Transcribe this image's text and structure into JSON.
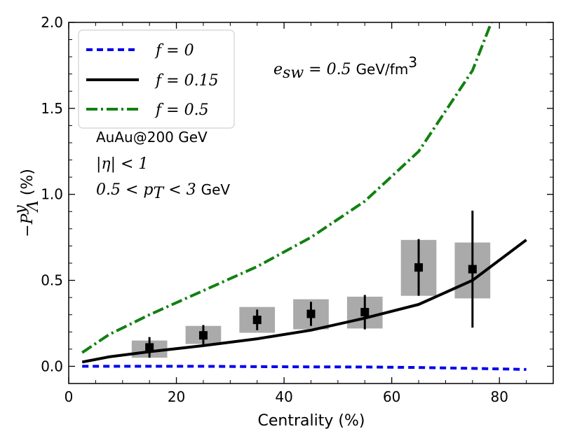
{
  "chart_data": {
    "type": "line",
    "xlabel": "Centrality (%)",
    "ylabel": "−P",
    "ylabel_sup": "y",
    "ylabel_sub": "Λ",
    "ylabel_unit": " (%)",
    "xlim": [
      0,
      90
    ],
    "ylim": [
      -0.1,
      2.0
    ],
    "xticks": [
      0,
      20,
      40,
      60,
      80
    ],
    "yticks": [
      0.0,
      0.5,
      1.0,
      1.5,
      2.0
    ],
    "xtick_labels": [
      "0",
      "20",
      "40",
      "60",
      "80"
    ],
    "ytick_labels": [
      "0.0",
      "0.5",
      "1.0",
      "1.5",
      "2.0"
    ],
    "grid": false,
    "legend_position": "top-left",
    "series": [
      {
        "name_var": "f",
        "name_value": " = 0",
        "style": "dashed",
        "color": "#0000ee",
        "x": [
          2.5,
          7.5,
          15,
          25,
          35,
          45,
          55,
          65,
          75,
          85
        ],
        "y": [
          0.0,
          0.0,
          0.0,
          0.0,
          -0.002,
          -0.003,
          -0.004,
          -0.007,
          -0.012,
          -0.018
        ]
      },
      {
        "name_var": "f",
        "name_value": " = 0.15",
        "style": "solid",
        "color": "#000000",
        "x": [
          2.5,
          7.5,
          15,
          25,
          35,
          45,
          55,
          65,
          75,
          85
        ],
        "y": [
          0.025,
          0.055,
          0.085,
          0.12,
          0.16,
          0.21,
          0.28,
          0.36,
          0.5,
          0.735
        ]
      },
      {
        "name_var": "f",
        "name_value": " = 0.5",
        "style": "dashdot",
        "color": "#118011",
        "x": [
          2.5,
          7.5,
          15,
          25,
          35,
          45,
          55,
          65,
          75,
          78.5
        ],
        "y": [
          0.08,
          0.185,
          0.3,
          0.44,
          0.58,
          0.75,
          0.96,
          1.25,
          1.72,
          2.0
        ]
      }
    ],
    "measurements": {
      "marker": "square",
      "color": "#000000",
      "syst_color": "#aaaaaa",
      "points": [
        {
          "x": 15,
          "y": 0.11,
          "stat": 0.06,
          "syst_lo": 0.05,
          "syst_hi": 0.15
        },
        {
          "x": 25,
          "y": 0.18,
          "stat": 0.06,
          "syst_lo": 0.13,
          "syst_hi": 0.235
        },
        {
          "x": 35,
          "y": 0.27,
          "stat": 0.06,
          "syst_lo": 0.195,
          "syst_hi": 0.345
        },
        {
          "x": 45,
          "y": 0.305,
          "stat": 0.07,
          "syst_lo": 0.215,
          "syst_hi": 0.39
        },
        {
          "x": 55,
          "y": 0.315,
          "stat": 0.1,
          "syst_lo": 0.22,
          "syst_hi": 0.405
        },
        {
          "x": 65,
          "y": 0.575,
          "stat": 0.165,
          "syst_lo": 0.41,
          "syst_hi": 0.735
        },
        {
          "x": 75,
          "y": 0.565,
          "stat": 0.34,
          "syst_lo": 0.395,
          "syst_hi": 0.72
        }
      ],
      "box_half_width": 3.3
    },
    "annotations": {
      "esw_var": "e",
      "esw_sub": "sw",
      "esw_eq": " = 0.5 ",
      "esw_unit": "GeV/fm",
      "esw_unit_sup": "3",
      "system": "AuAu@200 GeV",
      "eta_cut": "|η| < 1",
      "pt_lo": "0.5 < ",
      "pt_var": "p",
      "pt_sub": "T",
      "pt_hi": " < 3 ",
      "pt_unit": "GeV"
    }
  }
}
